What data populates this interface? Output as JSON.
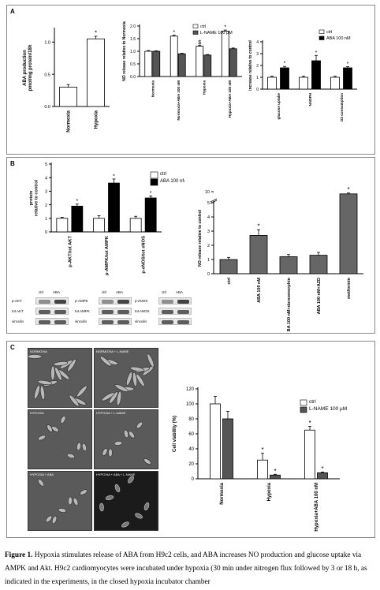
{
  "panels": {
    "a": "A",
    "b": "B",
    "c": "C"
  },
  "caption": {
    "figure_label": "Figure 1.",
    "text": "Hypoxia stimulates release of ABA from H9c2 cells, and ABA increases NO production and glucose uptake via AMPK and Akt. H9c2 cardiomyocytes were incubated under hypoxia (30 min under nitrogen flux followed by 3 or 18 h, as indicated in the experiments, in the closed hypoxia incubator chamber"
  },
  "blots": {
    "lanes": [
      "ctrl",
      "ABA"
    ],
    "groups": [
      {
        "rows": [
          "p-AKT",
          "tot AKT",
          "vinculin"
        ]
      },
      {
        "rows": [
          "p-AMPK",
          "tot AMPK",
          "vinculin"
        ]
      },
      {
        "rows": [
          "p-eNOS",
          "tot eNOS",
          "vinculin"
        ]
      }
    ]
  },
  "micrographs": [
    {
      "label": "NORMOXIA"
    },
    {
      "label": "NORMOXIA + L-NAME"
    },
    {
      "label": "HYPOXIA"
    },
    {
      "label": "HYPOXIA + L-NAME"
    },
    {
      "label": "HYPOXIA + ABA"
    },
    {
      "label": "HYPOXIA + ABA + L-NAME"
    }
  ],
  "chart_data": [
    {
      "type": "bar",
      "ylabel": "ABA production\npmol/mg protein/18h",
      "categories": [
        "Normoxia",
        "Hypoxia"
      ],
      "series": [
        {
          "values": [
            0.3,
            1.05
          ]
        }
      ],
      "errors": [
        0.04,
        0.04
      ],
      "ylim": [
        0,
        1.2
      ],
      "yticks": [
        "0.0",
        "0.5",
        "1.0"
      ],
      "significance": [
        "",
        "*"
      ],
      "colors": [
        "#ffffff"
      ]
    },
    {
      "type": "bar",
      "ylabel": "NO release relative to Normoxia",
      "ylim": [
        0,
        2.0
      ],
      "yticks": [
        "0.0",
        "0.5",
        "1.0",
        "1.5",
        "2.0"
      ],
      "categories": [
        "Normoxia",
        "Normoxia+ABA 100 nM",
        "Hypoxia",
        "Hypoxia+ABA 100 nM"
      ],
      "series": [
        {
          "name": "ctrl",
          "values": [
            1.0,
            1.6,
            1.2,
            1.8
          ],
          "errors": [
            0.03,
            0.04,
            0.04,
            0.04
          ]
        },
        {
          "name": "L-NAME 100 µM",
          "values": [
            1.0,
            0.9,
            0.85,
            1.1
          ],
          "errors": [
            0.02,
            0.02,
            0.02,
            0.03
          ]
        }
      ],
      "significance": [
        [
          "",
          "*",
          "$",
          "*"
        ],
        [
          "",
          "",
          "",
          ""
        ]
      ],
      "colors": [
        "#ffffff",
        "#555555"
      ]
    },
    {
      "type": "bar",
      "ylabel": "increase relative to control",
      "ylim": [
        0,
        4
      ],
      "yticks": [
        "0",
        "1",
        "2",
        "3",
        "4"
      ],
      "categories": [
        "glucose uptake",
        "NADPH",
        "O2 consumption"
      ],
      "series": [
        {
          "name": "ctrl",
          "values": [
            1.0,
            1.0,
            1.0
          ],
          "errors": [
            0.1,
            0.1,
            0.1
          ]
        },
        {
          "name": "ABA 100 nM",
          "values": [
            1.8,
            2.4,
            1.8
          ],
          "errors": [
            0.12,
            0.45,
            0.1
          ]
        }
      ],
      "significance": [
        [
          "",
          "",
          ""
        ],
        [
          "*",
          "*",
          "*"
        ]
      ],
      "colors": [
        "#ffffff",
        "#000000"
      ]
    },
    {
      "type": "bar",
      "ylabel": "protein\nrelative to control",
      "ylim": [
        0,
        5
      ],
      "yticks": [
        "0",
        "1",
        "2",
        "3",
        "4",
        "5"
      ],
      "categories": [
        "p-AKT/tot AKT",
        "p-AMPK/tot AMPK",
        "p-eNOS/tot eNOS"
      ],
      "series": [
        {
          "name": "ctrl",
          "values": [
            1.0,
            1.0,
            1.0
          ],
          "errors": [
            0.08,
            0.2,
            0.15
          ]
        },
        {
          "name": "ABA 100 nM",
          "values": [
            1.9,
            3.6,
            2.5
          ],
          "errors": [
            0.15,
            0.3,
            0.15
          ]
        }
      ],
      "significance": [
        [
          "",
          "",
          ""
        ],
        [
          "*",
          "*",
          "*"
        ]
      ],
      "colors": [
        "#ffffff",
        "#000000"
      ]
    },
    {
      "type": "bar",
      "ylabel": "NO release relative to control",
      "ylim": [
        0,
        10
      ],
      "yticks": [
        "0",
        "1",
        "2",
        "3",
        "4",
        "5",
        "10"
      ],
      "axis_break": true,
      "categories": [
        "ctrl",
        "ABA 100 nM",
        "ABA 100 nM+dorsomorphin",
        "ABA 100 nM+AZD",
        "metformin"
      ],
      "series": [
        {
          "values": [
            1.0,
            2.7,
            1.2,
            1.3,
            9.0
          ],
          "errors": [
            0.15,
            0.4,
            0.15,
            0.2,
            0.4
          ]
        }
      ],
      "significance": [
        "",
        "*",
        "",
        "",
        "*"
      ],
      "colors": [
        "#666666"
      ]
    },
    {
      "type": "bar",
      "ylabel": "Cell viability (%)",
      "ylim": [
        0,
        120
      ],
      "yticks": [
        "0",
        "20",
        "40",
        "60",
        "80",
        "100",
        "120"
      ],
      "categories": [
        "Normoxia",
        "Hypoxia",
        "Hypoxia+ABA 100 nM"
      ],
      "series": [
        {
          "name": "ctrl",
          "values": [
            100,
            25,
            65
          ],
          "errors": [
            10,
            9,
            5
          ]
        },
        {
          "name": "L-NAME 100 µM",
          "values": [
            80,
            5,
            8
          ],
          "errors": [
            10,
            1,
            1
          ]
        }
      ],
      "significance": [
        [
          "",
          "*",
          "*"
        ],
        [
          "",
          "*",
          "*"
        ]
      ],
      "colors": [
        "#ffffff",
        "#555555"
      ]
    }
  ]
}
